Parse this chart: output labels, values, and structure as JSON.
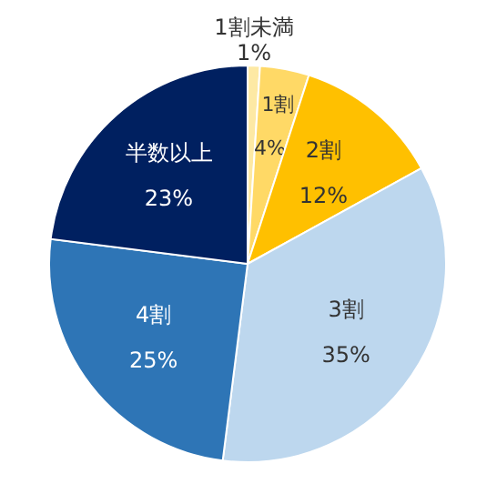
{
  "chart_data": {
    "type": "pie",
    "categories": [
      "1割未満",
      "1割",
      "2割",
      "3割",
      "4割",
      "半数以上"
    ],
    "values": [
      1,
      4,
      12,
      35,
      25,
      23
    ],
    "colors": [
      "#fde9a4",
      "#ffd966",
      "#ffc000",
      "#bdd7ee",
      "#2e75b6",
      "#002060"
    ],
    "value_labels": [
      "1%",
      "4%",
      "12%",
      "35%",
      "25%",
      "23%"
    ]
  }
}
